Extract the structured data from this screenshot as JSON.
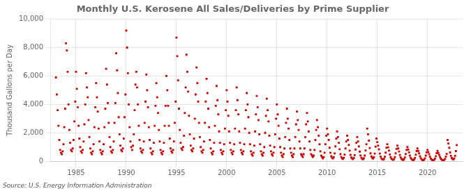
{
  "chart_data": {
    "type": "scatter",
    "title": "Monthly U.S. Kerosene All Sales/Deliveries by Prime Supplier",
    "ylabel": "Thousand Gallons per Day",
    "annotations": [
      "Source: U.S. Energy Information Administration"
    ],
    "color": "#cc0000",
    "marker": "square",
    "grid": true,
    "xlim": [
      1982.5,
      2023.5
    ],
    "xticks": [
      1985,
      1990,
      1995,
      2000,
      2005,
      2010,
      2015,
      2020
    ],
    "ylim": [
      0,
      10000
    ],
    "yticks": [
      0,
      {
        "value": 2000,
        "label": "2,000"
      },
      {
        "value": 4000,
        "label": "4,000"
      },
      {
        "value": 6000,
        "label": "6,000"
      },
      {
        "value": 8000,
        "label": "8,000"
      },
      {
        "value": 10000,
        "label": "10,000"
      }
    ],
    "x": [
      1983.0,
      1983.083,
      1983.167,
      1983.25,
      1983.333,
      1983.417,
      1983.5,
      1983.583,
      1983.667,
      1983.75,
      1983.833,
      1983.917,
      1984.0,
      1984.083,
      1984.167,
      1984.25,
      1984.333,
      1984.417,
      1984.5,
      1984.583,
      1984.667,
      1984.75,
      1984.833,
      1984.917,
      1985.0,
      1985.083,
      1985.167,
      1985.25,
      1985.333,
      1985.417,
      1985.5,
      1985.583,
      1985.667,
      1985.75,
      1985.833,
      1985.917,
      1986.0,
      1986.083,
      1986.167,
      1986.25,
      1986.333,
      1986.417,
      1986.5,
      1986.583,
      1986.667,
      1986.75,
      1986.833,
      1986.917,
      1987.0,
      1987.083,
      1987.167,
      1987.25,
      1987.333,
      1987.417,
      1987.5,
      1987.583,
      1987.667,
      1987.75,
      1987.833,
      1987.917,
      1988.0,
      1988.083,
      1988.167,
      1988.25,
      1988.333,
      1988.417,
      1988.5,
      1988.583,
      1988.667,
      1988.75,
      1988.833,
      1988.917,
      1989.0,
      1989.083,
      1989.167,
      1989.25,
      1989.333,
      1989.417,
      1989.5,
      1989.583,
      1989.667,
      1989.75,
      1989.833,
      1989.917,
      1990.0,
      1990.083,
      1990.167,
      1990.25,
      1990.333,
      1990.417,
      1990.5,
      1990.583,
      1990.667,
      1990.75,
      1990.833,
      1990.917,
      1991.0,
      1991.083,
      1991.167,
      1991.25,
      1991.333,
      1991.417,
      1991.5,
      1991.583,
      1991.667,
      1991.75,
      1991.833,
      1991.917,
      1992.0,
      1992.083,
      1992.167,
      1992.25,
      1992.333,
      1992.417,
      1992.5,
      1992.583,
      1992.667,
      1992.75,
      1992.833,
      1992.917,
      1993.0,
      1993.083,
      1993.167,
      1993.25,
      1993.333,
      1993.417,
      1993.5,
      1993.583,
      1993.667,
      1993.75,
      1993.833,
      1993.917,
      1994.0,
      1994.083,
      1994.167,
      1994.25,
      1994.333,
      1994.417,
      1994.5,
      1994.583,
      1994.667,
      1994.75,
      1994.833,
      1994.917,
      1995.0,
      1995.083,
      1995.167,
      1995.25,
      1995.333,
      1995.417,
      1995.5,
      1995.583,
      1995.667,
      1995.75,
      1995.833,
      1995.917,
      1996.0,
      1996.083,
      1996.167,
      1996.25,
      1996.333,
      1996.417,
      1996.5,
      1996.583,
      1996.667,
      1996.75,
      1996.833,
      1996.917,
      1997.0,
      1997.083,
      1997.167,
      1997.25,
      1997.333,
      1997.417,
      1997.5,
      1997.583,
      1997.667,
      1997.75,
      1997.833,
      1997.917,
      1998.0,
      1998.083,
      1998.167,
      1998.25,
      1998.333,
      1998.417,
      1998.5,
      1998.583,
      1998.667,
      1998.75,
      1998.833,
      1998.917,
      1999.0,
      1999.083,
      1999.167,
      1999.25,
      1999.333,
      1999.417,
      1999.5,
      1999.583,
      1999.667,
      1999.75,
      1999.833,
      1999.917,
      2000.0,
      2000.083,
      2000.167,
      2000.25,
      2000.333,
      2000.417,
      2000.5,
      2000.583,
      2000.667,
      2000.75,
      2000.833,
      2000.917,
      2001.0,
      2001.083,
      2001.167,
      2001.25,
      2001.333,
      2001.417,
      2001.5,
      2001.583,
      2001.667,
      2001.75,
      2001.833,
      2001.917,
      2002.0,
      2002.083,
      2002.167,
      2002.25,
      2002.333,
      2002.417,
      2002.5,
      2002.583,
      2002.667,
      2002.75,
      2002.833,
      2002.917,
      2003.0,
      2003.083,
      2003.167,
      2003.25,
      2003.333,
      2003.417,
      2003.5,
      2003.583,
      2003.667,
      2003.75,
      2003.833,
      2003.917,
      2004.0,
      2004.083,
      2004.167,
      2004.25,
      2004.333,
      2004.417,
      2004.5,
      2004.583,
      2004.667,
      2004.75,
      2004.833,
      2004.917,
      2005.0,
      2005.083,
      2005.167,
      2005.25,
      2005.333,
      2005.417,
      2005.5,
      2005.583,
      2005.667,
      2005.75,
      2005.833,
      2005.917,
      2006.0,
      2006.083,
      2006.167,
      2006.25,
      2006.333,
      2006.417,
      2006.5,
      2006.583,
      2006.667,
      2006.75,
      2006.833,
      2006.917,
      2007.0,
      2007.083,
      2007.167,
      2007.25,
      2007.333,
      2007.417,
      2007.5,
      2007.583,
      2007.667,
      2007.75,
      2007.833,
      2007.917,
      2008.0,
      2008.083,
      2008.167,
      2008.25,
      2008.333,
      2008.417,
      2008.5,
      2008.583,
      2008.667,
      2008.75,
      2008.833,
      2008.917,
      2009.0,
      2009.083,
      2009.167,
      2009.25,
      2009.333,
      2009.417,
      2009.5,
      2009.583,
      2009.667,
      2009.75,
      2009.833,
      2009.917,
      2010.0,
      2010.083,
      2010.167,
      2010.25,
      2010.333,
      2010.417,
      2010.5,
      2010.583,
      2010.667,
      2010.75,
      2010.833,
      2010.917,
      2011.0,
      2011.083,
      2011.167,
      2011.25,
      2011.333,
      2011.417,
      2011.5,
      2011.583,
      2011.667,
      2011.75,
      2011.833,
      2011.917,
      2012.0,
      2012.083,
      2012.167,
      2012.25,
      2012.333,
      2012.417,
      2012.5,
      2012.583,
      2012.667,
      2012.75,
      2012.833,
      2012.917,
      2013.0,
      2013.083,
      2013.167,
      2013.25,
      2013.333,
      2013.417,
      2013.5,
      2013.583,
      2013.667,
      2013.75,
      2013.833,
      2013.917,
      2014.0,
      2014.083,
      2014.167,
      2014.25,
      2014.333,
      2014.417,
      2014.5,
      2014.583,
      2014.667,
      2014.75,
      2014.833,
      2014.917,
      2015.0,
      2015.083,
      2015.167,
      2015.25,
      2015.333,
      2015.417,
      2015.5,
      2015.583,
      2015.667,
      2015.75,
      2015.833,
      2015.917,
      2016.0,
      2016.083,
      2016.167,
      2016.25,
      2016.333,
      2016.417,
      2016.5,
      2016.583,
      2016.667,
      2016.75,
      2016.833,
      2016.917,
      2017.0,
      2017.083,
      2017.167,
      2017.25,
      2017.333,
      2017.417,
      2017.5,
      2017.583,
      2017.667,
      2017.75,
      2017.833,
      2017.917,
      2018.0,
      2018.083,
      2018.167,
      2018.25,
      2018.333,
      2018.417,
      2018.5,
      2018.583,
      2018.667,
      2018.75,
      2018.833,
      2018.917,
      2019.0,
      2019.083,
      2019.167,
      2019.25,
      2019.333,
      2019.417,
      2019.5,
      2019.583,
      2019.667,
      2019.75,
      2019.833,
      2019.917,
      2020.0,
      2020.083,
      2020.167,
      2020.25,
      2020.333,
      2020.417,
      2020.5,
      2020.583,
      2020.667,
      2020.75,
      2020.833,
      2020.917,
      2021.0,
      2021.083,
      2021.167,
      2021.25,
      2021.333,
      2021.417,
      2021.5,
      2021.583,
      2021.667,
      2021.75,
      2021.833,
      2021.917,
      2022.0,
      2022.083,
      2022.167,
      2022.25,
      2022.333,
      2022.417,
      2022.5,
      2022.583,
      2022.667,
      2022.75,
      2022.833,
      2022.917
    ],
    "values": [
      5900,
      4700,
      3600,
      2500,
      1500,
      800,
      600,
      500,
      700,
      1200,
      2400,
      3700,
      8300,
      7800,
      6300,
      4000,
      2200,
      1300,
      800,
      700,
      900,
      1500,
      2800,
      4200,
      6300,
      5100,
      3800,
      2500,
      1600,
      1000,
      700,
      600,
      800,
      1400,
      2600,
      4000,
      6200,
      5200,
      4500,
      2900,
      1700,
      900,
      600,
      500,
      700,
      1200,
      2400,
      3800,
      5500,
      4500,
      3500,
      2300,
      1400,
      800,
      600,
      500,
      700,
      1200,
      2400,
      3700,
      6500,
      5400,
      4100,
      2700,
      1700,
      1000,
      700,
      600,
      800,
      1400,
      2700,
      4100,
      7600,
      6400,
      4800,
      3100,
      1900,
      1100,
      800,
      700,
      900,
      1600,
      3100,
      4700,
      9200,
      8000,
      6200,
      4000,
      2400,
      1400,
      1000,
      800,
      1100,
      1900,
      3600,
      5400,
      6300,
      5200,
      4000,
      2500,
      1500,
      900,
      700,
      600,
      800,
      1400,
      2700,
      4200,
      6100,
      5000,
      3800,
      2400,
      1500,
      900,
      600,
      500,
      700,
      1300,
      2500,
      3900,
      5500,
      4500,
      3400,
      2200,
      1400,
      800,
      600,
      500,
      700,
      1300,
      2500,
      3900,
      6000,
      5000,
      3900,
      2500,
      1600,
      900,
      700,
      600,
      800,
      1400,
      2700,
      4200,
      8700,
      7400,
      5700,
      3700,
      2200,
      1300,
      900,
      800,
      1000,
      1800,
      3400,
      5200,
      7500,
      6300,
      4900,
      3200,
      1900,
      1100,
      800,
      700,
      900,
      1600,
      3000,
      4700,
      6600,
      5500,
      4200,
      2700,
      1700,
      1000,
      700,
      600,
      800,
      1400,
      2700,
      4200,
      5800,
      4800,
      3700,
      2400,
      1500,
      900,
      600,
      500,
      700,
      1300,
      2500,
      3900,
      5300,
      4300,
      3300,
      2100,
      1300,
      800,
      600,
      500,
      700,
      1200,
      2300,
      3600,
      5000,
      4200,
      3200,
      2100,
      1300,
      800,
      600,
      500,
      700,
      1200,
      2300,
      3600,
      5200,
      4300,
      3300,
      2100,
      1300,
      800,
      600,
      500,
      700,
      1200,
      2300,
      3600,
      4800,
      4000,
      3100,
      2000,
      1200,
      700,
      500,
      400,
      600,
      1100,
      2100,
      3300,
      4600,
      3800,
      2900,
      1900,
      1200,
      700,
      500,
      400,
      600,
      1000,
      2000,
      3200,
      4400,
      3600,
      2800,
      1800,
      1100,
      700,
      500,
      400,
      600,
      1000,
      1900,
      3000,
      4000,
      3300,
      2500,
      1600,
      1000,
      600,
      400,
      300,
      500,
      900,
      1700,
      2700,
      3700,
      3000,
      2300,
      1500,
      900,
      600,
      400,
      300,
      500,
      900,
      1700,
      2600,
      3500,
      2900,
      2200,
      1400,
      900,
      500,
      400,
      300,
      500,
      900,
      1700,
      2600,
      3400,
      2800,
      2100,
      1400,
      800,
      500,
      400,
      300,
      400,
      800,
      1500,
      2200,
      2900,
      2400,
      1800,
      1200,
      700,
      400,
      300,
      200,
      300,
      600,
      1200,
      1800,
      2300,
      1900,
      1500,
      950,
      600,
      350,
      250,
      200,
      300,
      550,
      1050,
      1600,
      2100,
      1700,
      1300,
      850,
      500,
      300,
      200,
      160,
      250,
      470,
      900,
      1400,
      1800,
      1500,
      1150,
      750,
      450,
      270,
      190,
      150,
      230,
      430,
      830,
      1300,
      1700,
      1400,
      1050,
      680,
      410,
      250,
      170,
      140,
      210,
      400,
      760,
      1200,
      2300,
      1900,
      1450,
      930,
      560,
      340,
      240,
      190,
      290,
      540,
      1030,
      1600,
      1350,
      1100,
      840,
      540,
      330,
      200,
      140,
      110,
      170,
      320,
      610,
      960,
      1200,
      980,
      750,
      480,
      290,
      180,
      130,
      100,
      150,
      290,
      560,
      870,
      1100,
      900,
      690,
      440,
      270,
      160,
      120,
      90,
      140,
      270,
      510,
      800,
      1000,
      820,
      630,
      400,
      240,
      150,
      100,
      80,
      130,
      240,
      460,
      720,
      900,
      730,
      560,
      360,
      220,
      130,
      90,
      70,
      110,
      210,
      400,
      630,
      800,
      650,
      500,
      320,
      190,
      120,
      80,
      65,
      100,
      190,
      360,
      570,
      730,
      590,
      450,
      290,
      180,
      110,
      75,
      60,
      90,
      175,
      330,
      520,
      1500,
      1250,
      950,
      620,
      380,
      230,
      160,
      130,
      200,
      380,
      720,
      1140
    ]
  }
}
